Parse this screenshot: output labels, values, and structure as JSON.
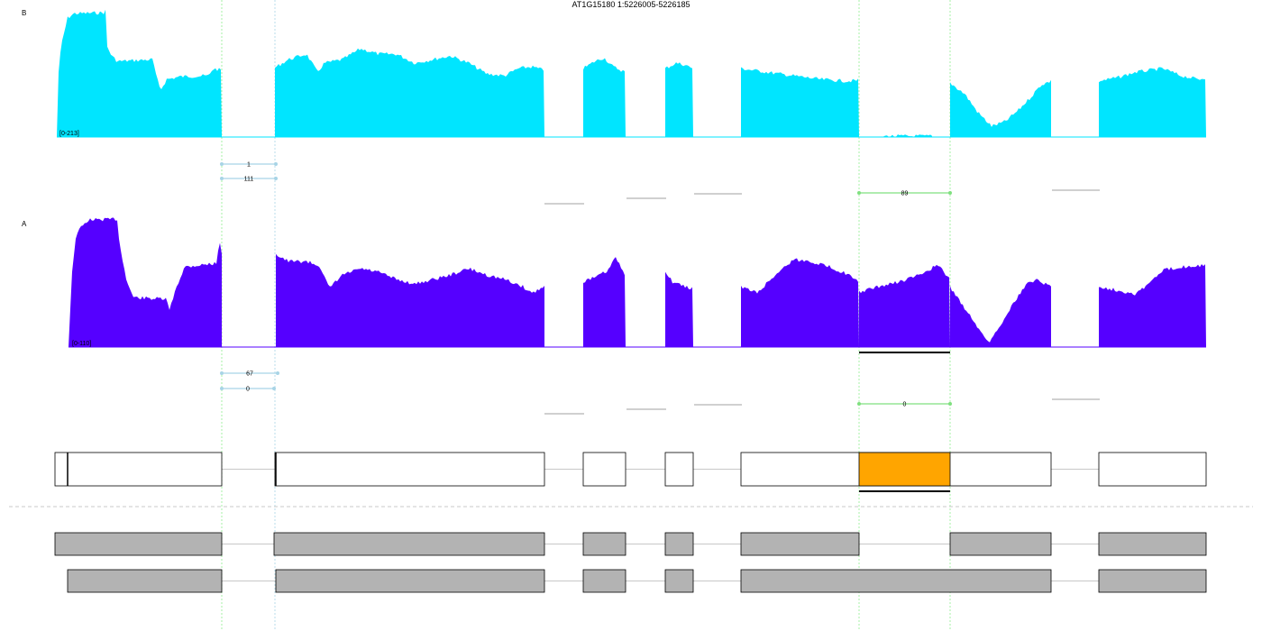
{
  "title": "AT1G15180 1:5226005-5226185",
  "colors": {
    "sample_b": "#00e5ff",
    "sample_a": "#5500ff",
    "junction_blue": "#a8d4e6",
    "junction_green": "#7fe07f",
    "guide_blue": "#a8d4e6",
    "guide_green": "#90ee90",
    "highlight": "#ffa500",
    "transcript_fill": "#b3b3b3",
    "gray_line": "#d0d0d0"
  },
  "tracks": [
    {
      "label": "B",
      "range": "[0-213]",
      "color": "#00e5ff"
    },
    {
      "label": "A",
      "range": "[0-110]",
      "color": "#5500ff"
    }
  ],
  "junctions": {
    "B": [
      {
        "label": "1",
        "color": "blue"
      },
      {
        "label": "111",
        "color": "blue"
      },
      {
        "label": "89",
        "color": "green"
      }
    ],
    "A": [
      {
        "label": "67",
        "color": "blue"
      },
      {
        "label": "0",
        "color": "blue"
      },
      {
        "label": "0",
        "color": "green"
      }
    ]
  },
  "chart_data": {
    "type": "area",
    "title": "AT1G15180 1:5226005-5226185",
    "series": [
      {
        "name": "B",
        "ylim": [
          0,
          213
        ]
      },
      {
        "name": "A",
        "ylim": [
          0,
          110
        ]
      }
    ]
  }
}
